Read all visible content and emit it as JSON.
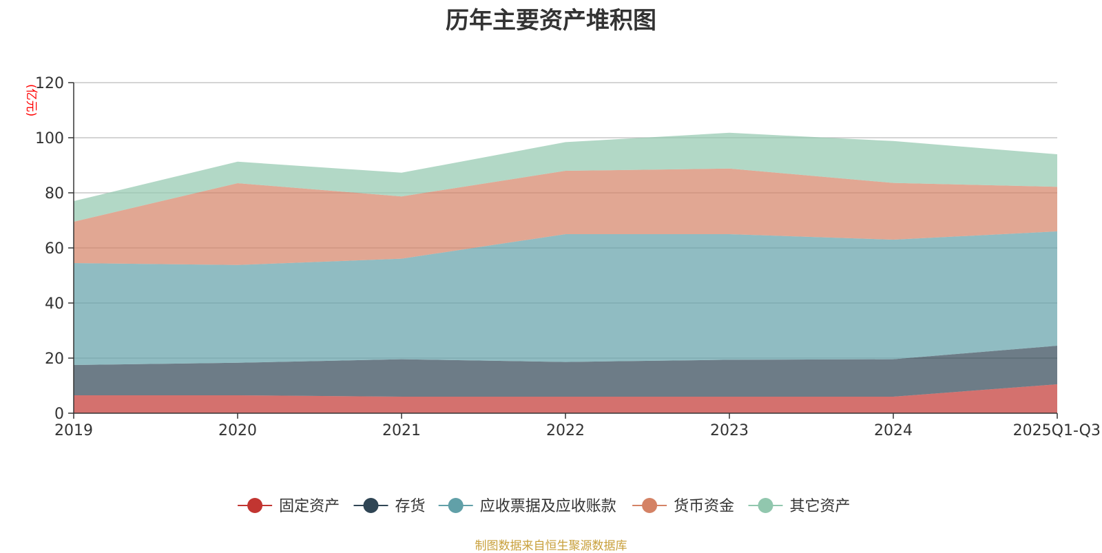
{
  "chart_data": {
    "type": "area",
    "stacked": true,
    "title": "历年主要资产堆积图",
    "ylabel": "(亿元)",
    "xlabel": "",
    "categories": [
      "2019",
      "2020",
      "2021",
      "2022",
      "2023",
      "2024",
      "2025Q1-Q3"
    ],
    "ylim": [
      0,
      120
    ],
    "yticks": [
      0,
      20,
      40,
      60,
      80,
      100,
      120
    ],
    "grid": true,
    "legend_position": "bottom",
    "series": [
      {
        "name": "固定资产",
        "color": "#c23531",
        "values": [
          6.5,
          6.5,
          6.0,
          6.0,
          6.0,
          6.0,
          10.5
        ]
      },
      {
        "name": "存货",
        "color": "#2f4554",
        "values": [
          11.0,
          11.8,
          13.6,
          12.6,
          13.4,
          13.6,
          14.0
        ]
      },
      {
        "name": "应收票据及应收账款",
        "color": "#61a0a8",
        "values": [
          37.0,
          35.5,
          36.5,
          46.4,
          45.6,
          43.4,
          41.5
        ]
      },
      {
        "name": "货币资金",
        "color": "#d48265",
        "values": [
          15.0,
          29.7,
          22.6,
          23.0,
          23.8,
          20.6,
          16.2
        ]
      },
      {
        "name": "其它资产",
        "color": "#91c7ae",
        "values": [
          7.5,
          7.8,
          8.6,
          10.4,
          13.0,
          15.2,
          11.8
        ]
      }
    ]
  },
  "source_note": "制图数据来自恒生聚源数据库"
}
